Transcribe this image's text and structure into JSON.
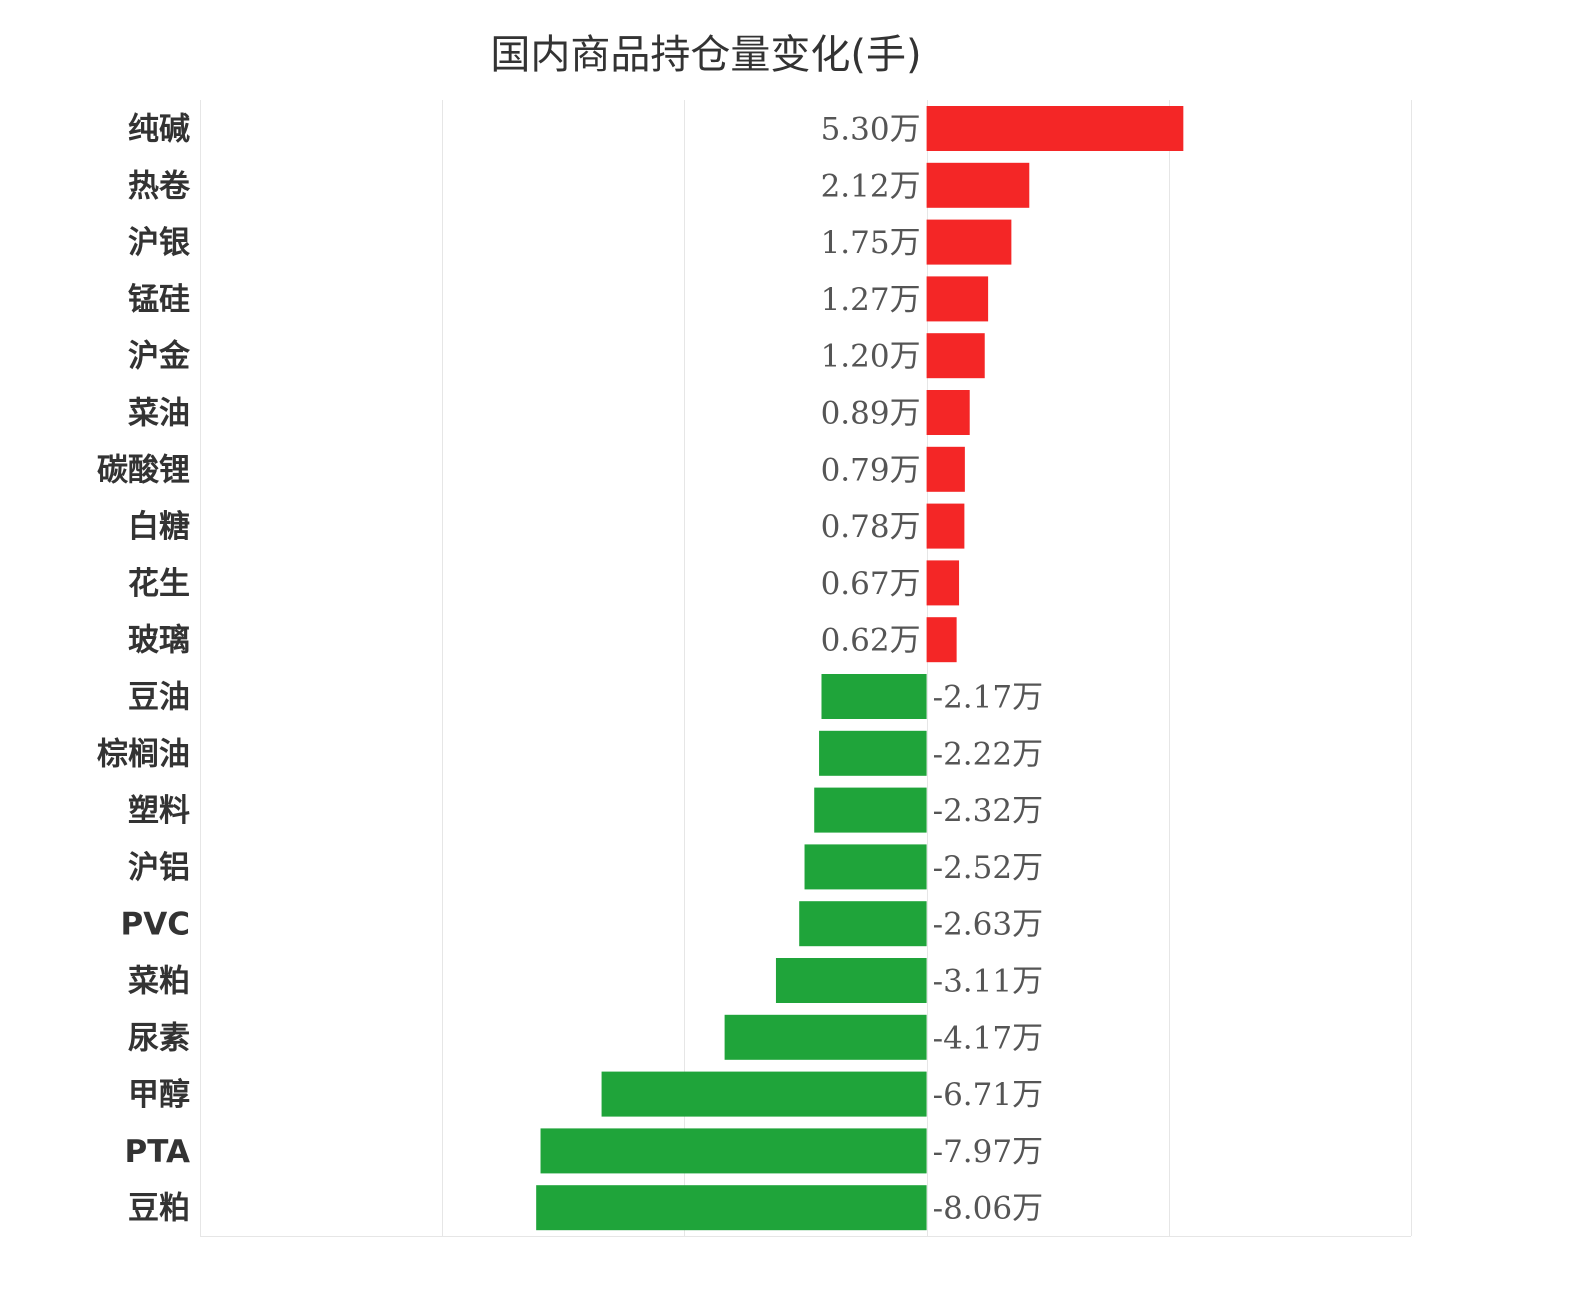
{
  "chart_data": {
    "type": "bar",
    "orientation": "horizontal",
    "title": "国内商品持仓量变化(手)",
    "xlabel": "",
    "ylabel": "",
    "unit": "万",
    "xlim": [
      -15,
      10
    ],
    "grid": true,
    "legend": "none",
    "colors": {
      "positive": "#f42626",
      "negative": "#1fa43a"
    },
    "categories": [
      "纯碱",
      "热卷",
      "沪银",
      "锰硅",
      "沪金",
      "菜油",
      "碳酸锂",
      "白糖",
      "花生",
      "玻璃",
      "豆油",
      "棕榈油",
      "塑料",
      "沪铝",
      "PVC",
      "菜粕",
      "尿素",
      "甲醇",
      "PTA",
      "豆粕"
    ],
    "values": [
      5.3,
      2.12,
      1.75,
      1.27,
      1.2,
      0.89,
      0.79,
      0.78,
      0.67,
      0.62,
      -2.17,
      -2.22,
      -2.32,
      -2.52,
      -2.63,
      -3.11,
      -4.17,
      -6.71,
      -7.97,
      -8.06
    ],
    "data_labels": [
      "5.30万",
      "2.12万",
      "1.75万",
      "1.27万",
      "1.20万",
      "0.89万",
      "0.79万",
      "0.78万",
      "0.67万",
      "0.62万",
      "-2.17万",
      "-2.22万",
      "-2.32万",
      "-2.52万",
      "-2.63万",
      "-3.11万",
      "-4.17万",
      "-6.71万",
      "-7.97万",
      "-8.06万"
    ]
  }
}
